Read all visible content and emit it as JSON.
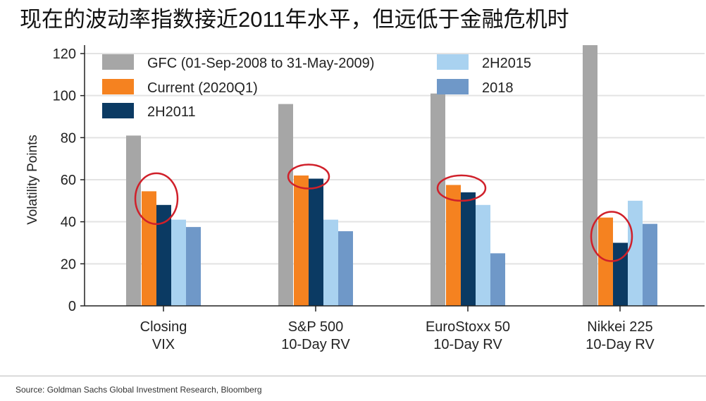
{
  "title": "现在的波动率指数接近2011年水平，但远低于金融危机时",
  "source": "Source: Goldman Sachs Global Investment Research, Bloomberg",
  "chart_data": {
    "type": "bar",
    "title": "现在的波动率指数接近2011年水平，但远低于金融危机时",
    "xlabel": "",
    "ylabel": "Volatility Points",
    "ylim": [
      0,
      120
    ],
    "yticks": [
      0,
      20,
      40,
      60,
      80,
      100,
      120
    ],
    "grid": true,
    "legend_position": "top-left",
    "categories": [
      [
        "Closing",
        "VIX"
      ],
      [
        "S&P 500",
        "10-Day RV"
      ],
      [
        "EuroStoxx 50",
        "10-Day RV"
      ],
      [
        "Nikkei 225",
        "10-Day RV"
      ]
    ],
    "series": [
      {
        "name": "GFC (01-Sep-2008 to 31-May-2009)",
        "color": "#a6a6a6",
        "values": [
          81,
          96,
          101,
          124
        ]
      },
      {
        "name": "Current (2020Q1)",
        "color": "#f58220",
        "values": [
          54.5,
          62,
          57.5,
          42
        ]
      },
      {
        "name": "2H2011",
        "color": "#0b3a63",
        "values": [
          48,
          60.5,
          54,
          30
        ]
      },
      {
        "name": "2H2015",
        "color": "#a9d2f0",
        "values": [
          41,
          41,
          48,
          50
        ]
      },
      {
        "name": "2018",
        "color": "#6f98c8",
        "values": [
          37.5,
          35.5,
          25,
          39
        ]
      }
    ],
    "annotations": "red circles around Current and 2H2011 bars in each group"
  }
}
